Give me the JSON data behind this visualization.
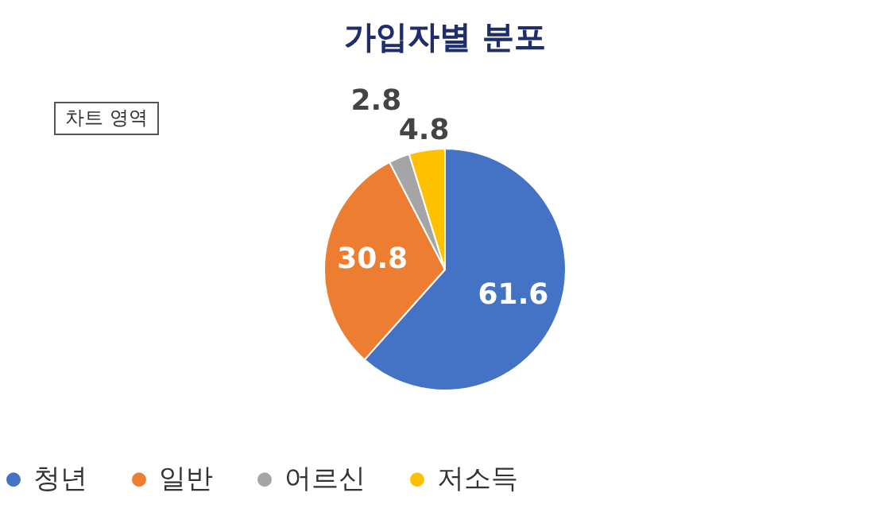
{
  "chart_data": {
    "type": "pie",
    "title": "가입자별 분포",
    "categories": [
      "청년",
      "일반",
      "어르신",
      "저소득"
    ],
    "values": [
      61.6,
      30.8,
      2.8,
      4.8
    ],
    "colors": [
      "#4472c4",
      "#ed7d31",
      "#a5a5a5",
      "#ffc000"
    ],
    "data_labels": true,
    "legend": "bottom",
    "annotations": [
      "차트 영역"
    ]
  }
}
